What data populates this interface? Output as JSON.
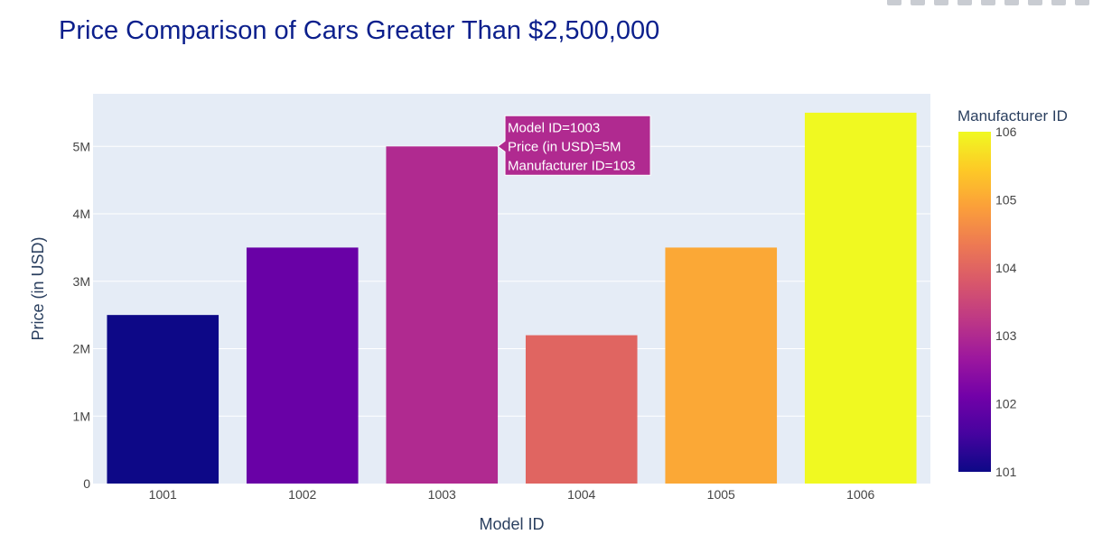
{
  "chart_data": {
    "type": "bar",
    "title": "Price Comparison of Cars Greater Than $2,500,000",
    "xlabel": "Model ID",
    "ylabel": "Price (in USD)",
    "categories": [
      "1001",
      "1002",
      "1003",
      "1004",
      "1005",
      "1006"
    ],
    "values": [
      2500000,
      3500000,
      5000000,
      2200000,
      3500000,
      5500000
    ],
    "color_values": [
      101,
      102,
      103,
      104,
      105,
      106
    ],
    "ylim": [
      0,
      5780000
    ],
    "y_ticks": [
      0,
      1000000,
      2000000,
      3000000,
      4000000,
      5000000
    ],
    "y_tick_labels": [
      "0",
      "1M",
      "2M",
      "3M",
      "4M",
      "5M"
    ],
    "colorbar": {
      "title": "Manufacturer ID",
      "range": [
        101,
        106
      ],
      "ticks": [
        "101",
        "102",
        "103",
        "104",
        "105",
        "106"
      ],
      "colorscale": [
        "#0d0887",
        "#46039f",
        "#7201a8",
        "#9c179e",
        "#bd3786",
        "#d8576b",
        "#ed7953",
        "#fb9f3a",
        "#fdca26",
        "#f0f921"
      ]
    },
    "hover": {
      "bar_index": 2,
      "lines": [
        "Model ID=1003",
        "Price (in USD)=5M",
        "Manufacturer ID=103"
      ]
    },
    "grid": true,
    "plot_bgcolor": "#e5ecf6"
  }
}
